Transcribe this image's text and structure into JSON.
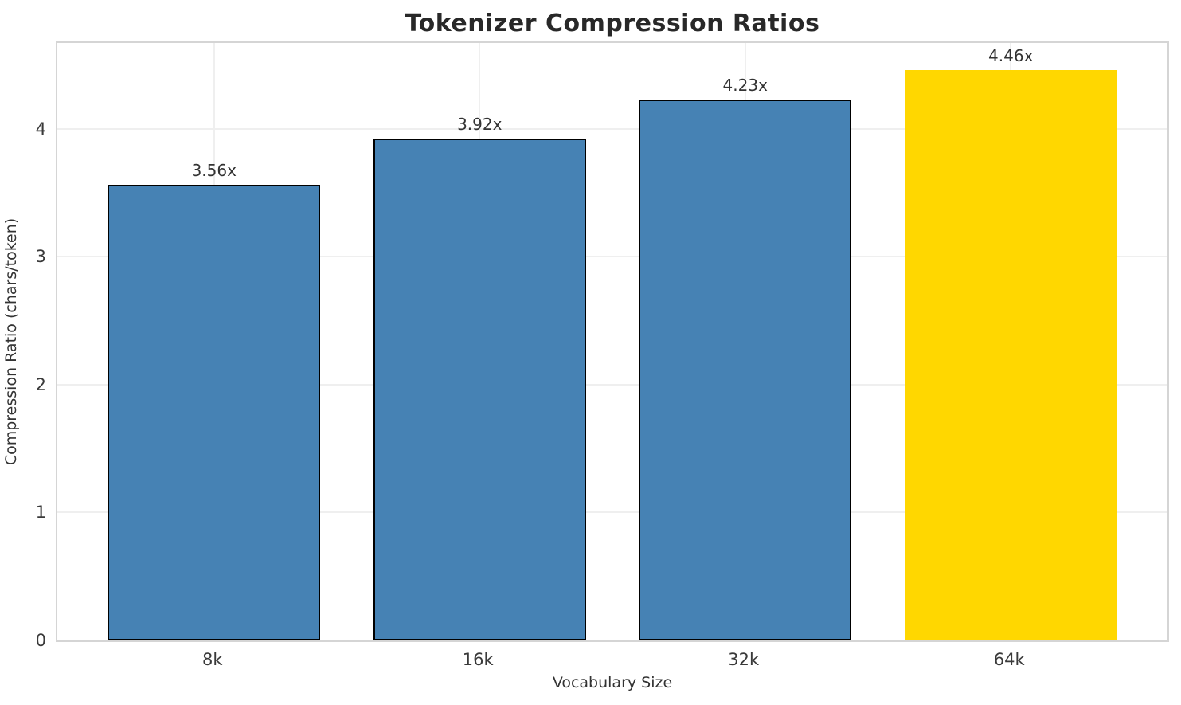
{
  "chart_data": {
    "type": "bar",
    "title": "Tokenizer Compression Ratios",
    "xlabel": "Vocabulary Size",
    "ylabel": "Compression Ratio (chars/token)",
    "categories": [
      "8k",
      "16k",
      "32k",
      "64k"
    ],
    "values": [
      3.56,
      3.92,
      4.23,
      4.46
    ],
    "bar_labels": [
      "3.56x",
      "3.92x",
      "4.23x",
      "4.46x"
    ],
    "yticks": [
      0,
      1,
      2,
      3,
      4
    ],
    "ylim": [
      0,
      4.67
    ],
    "grid": true,
    "legend": "none",
    "bar_colors": [
      "#4682B4",
      "#4682B4",
      "#4682B4",
      "#FFD700"
    ],
    "bar_edge_colors": [
      "#000000",
      "#000000",
      "#000000",
      "none"
    ],
    "highlight_index": 3
  },
  "colors": {
    "background": "#ffffff",
    "spine": "#d5d5d5",
    "grid": "#efefef",
    "text": "#333333",
    "title_text": "#282828"
  }
}
